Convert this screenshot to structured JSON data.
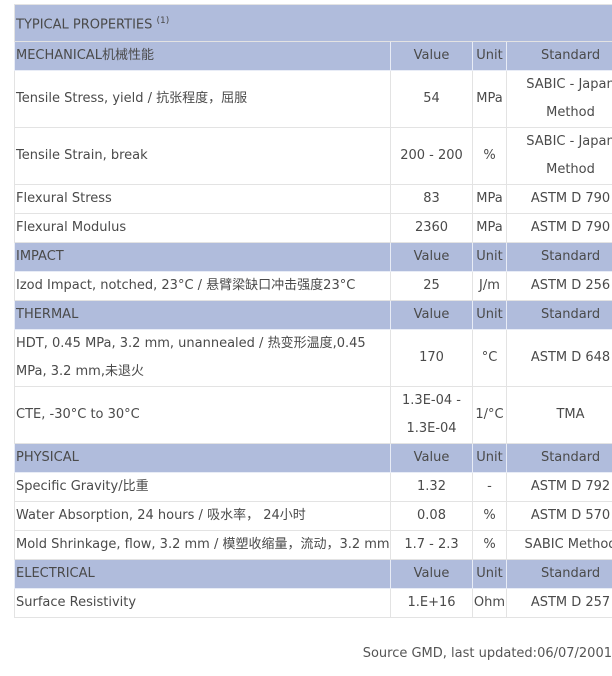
{
  "title": "TYPICAL PROPERTIES",
  "title_note": "(1)",
  "header_color": "#b0bcdc",
  "sections": [
    {
      "name": "MECHANICAL机械性能",
      "value_h": "Value",
      "unit_h": "Unit",
      "standard_h": "Standard",
      "rows": [
        {
          "property": "Tensile Stress, yield / 抗张程度，屈服",
          "value": "54",
          "unit": "MPa",
          "standard": "SABIC - Japan Method"
        },
        {
          "property": "Tensile Strain, break",
          "value": "200 - 200",
          "unit": "%",
          "standard": "SABIC - Japan Method"
        },
        {
          "property": "Flexural Stress",
          "value": "83",
          "unit": "MPa",
          "standard": "ASTM D 790"
        },
        {
          "property": "Flexural Modulus",
          "value": "2360",
          "unit": "MPa",
          "standard": "ASTM D 790"
        }
      ]
    },
    {
      "name": "IMPACT",
      "value_h": "Value",
      "unit_h": "Unit",
      "standard_h": "Standard",
      "rows": [
        {
          "property": "Izod Impact, notched, 23°C / 悬臂梁缺口冲击强度23°C",
          "value": "25",
          "unit": "J/m",
          "standard": "ASTM D 256"
        }
      ]
    },
    {
      "name": "THERMAL",
      "value_h": "Value",
      "unit_h": "Unit",
      "standard_h": "Standard",
      "rows": [
        {
          "property": "HDT, 0.45 MPa, 3.2 mm, unannealed / 热变形温度,0.45 MPa, 3.2 mm,未退火",
          "value": "170",
          "unit": "°C",
          "standard": "ASTM D 648"
        },
        {
          "property": "CTE, -30°C to 30°C",
          "value": "1.3E-04 - 1.3E-04",
          "unit": "1/°C",
          "standard": "TMA"
        }
      ]
    },
    {
      "name": "PHYSICAL",
      "value_h": "Value",
      "unit_h": "Unit",
      "standard_h": "Standard",
      "rows": [
        {
          "property": "Specific Gravity/比重",
          "value": "1.32",
          "unit": "-",
          "standard": "ASTM D 792"
        },
        {
          "property": "Water Absorption, 24 hours / 吸水率， 24小时",
          "value": "0.08",
          "unit": "%",
          "standard": "ASTM D 570"
        },
        {
          "property": "Mold Shrinkage, flow, 3.2 mm / 模塑收缩量，流动，3.2 mm",
          "value": "1.7 - 2.3",
          "unit": "%",
          "standard": "SABIC Method"
        }
      ]
    },
    {
      "name": "ELECTRICAL",
      "value_h": "Value",
      "unit_h": "Unit",
      "standard_h": "Standard",
      "rows": [
        {
          "property": "Surface Resistivity",
          "value": "1.E+16",
          "unit": "Ohm",
          "standard": "ASTM D 257"
        }
      ]
    }
  ],
  "footer": "Source GMD, last updated:06/07/2001"
}
